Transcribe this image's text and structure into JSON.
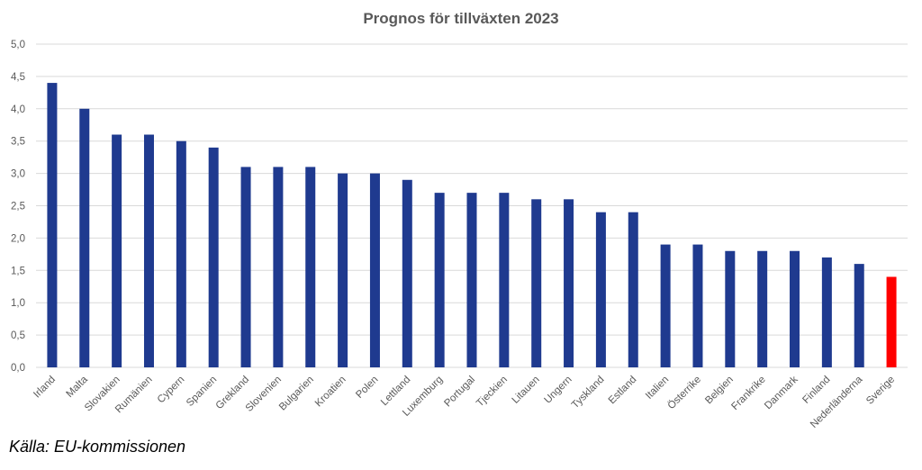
{
  "chart_data": {
    "type": "bar",
    "title": "Prognos för tillväxten 2023",
    "xlabel": "",
    "ylabel": "",
    "ylim": [
      0,
      5
    ],
    "yticks": [
      "0,0",
      "0,5",
      "1,0",
      "1,5",
      "2,0",
      "2,5",
      "3,0",
      "3,5",
      "4,0",
      "4,5",
      "5,0"
    ],
    "grid": true,
    "categories": [
      "Irland",
      "Malta",
      "Slovakien",
      "Rumänien",
      "Cypern",
      "Spanien",
      "Grekland",
      "Slovenien",
      "Bulgarien",
      "Kroatien",
      "Polen",
      "Lettland",
      "Luxemburg",
      "Portugal",
      "Tjeckien",
      "Litauen",
      "Ungern",
      "Tyskland",
      "Estland",
      "Italien",
      "Österrike",
      "Belgien",
      "Frankrike",
      "Danmark",
      "Finland",
      "Nederländerna",
      "Sverige"
    ],
    "values": [
      4.4,
      4.0,
      3.6,
      3.6,
      3.5,
      3.4,
      3.1,
      3.1,
      3.1,
      3.0,
      3.0,
      2.9,
      2.7,
      2.7,
      2.7,
      2.6,
      2.6,
      2.4,
      2.4,
      1.9,
      1.9,
      1.8,
      1.8,
      1.8,
      1.7,
      1.6,
      1.4
    ],
    "colors": {
      "default": "#1f3a8f",
      "highlight": "#ff0000",
      "highlight_category": "Sverige",
      "grid": "#d9d9d9"
    }
  },
  "source": "Källa: EU-kommissionen"
}
